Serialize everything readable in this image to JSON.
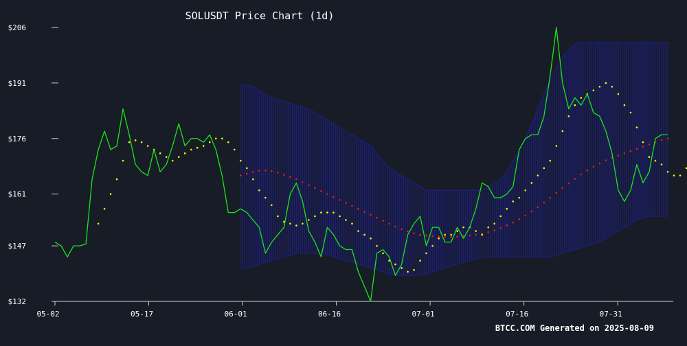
{
  "colors": {
    "background": "#181c26",
    "axis": "#cfcfcf",
    "text": "#ffffff",
    "price": "#19e619",
    "short_ma": "#ffff00",
    "long_ma": "#e0201a",
    "bollinger": "#1c1f8a"
  },
  "chart_data": {
    "type": "line",
    "title": "SOLUSDT Price Chart (1d)",
    "xlabel": "",
    "ylabel": "",
    "footer": "BTCC.COM Generated on 2025-08-09",
    "x_ticks": [
      "05-02",
      "05-17",
      "06-01",
      "06-16",
      "07-01",
      "07-16",
      "07-31"
    ],
    "y_ticks": [
      "$132",
      "$147",
      "$161",
      "$176",
      "$191",
      "$206"
    ],
    "y_tick_values": [
      132,
      147,
      161,
      176,
      191,
      206
    ],
    "ylim": [
      132,
      206
    ],
    "x_start": "2025-05-02",
    "x_end": "2025-08-08",
    "grid": false,
    "legend": "none",
    "series": [
      {
        "style": "line",
        "color": "#19e619",
        "values": [
          148,
          147,
          144,
          147,
          147,
          147.5,
          165,
          173,
          178,
          173,
          174,
          184,
          177,
          169,
          167,
          166,
          173,
          167,
          169,
          174,
          180,
          174,
          176,
          176,
          175,
          177,
          173,
          166,
          156,
          156,
          157,
          156,
          154,
          152,
          145,
          148,
          150,
          152,
          161,
          164,
          159,
          151,
          148,
          144,
          152,
          150,
          147,
          146,
          146,
          140,
          136,
          132,
          145,
          146,
          144,
          139,
          142,
          150,
          153,
          155,
          147,
          152,
          152,
          148,
          148,
          152,
          149,
          152,
          157,
          164,
          163,
          160,
          160,
          161,
          163,
          173,
          176,
          177,
          177,
          182,
          193,
          206,
          191,
          184,
          187,
          185,
          188,
          183,
          182,
          178,
          172,
          162,
          159,
          162,
          169,
          164,
          167,
          176,
          177,
          177
        ]
      },
      {
        "style": "dots",
        "color": "#ffff00",
        "start_index": 7,
        "values": [
          153,
          157,
          161,
          165,
          170,
          175,
          175.5,
          175,
          174,
          173,
          172,
          171,
          170,
          171,
          172,
          173,
          173.5,
          174,
          175,
          176,
          176,
          175,
          173,
          170,
          168,
          165,
          162,
          160,
          158,
          155,
          153.5,
          153,
          152.5,
          153,
          154,
          155,
          156,
          156,
          156,
          155,
          154,
          153,
          151,
          150,
          149,
          147,
          145,
          143,
          142,
          141,
          140,
          140.5,
          143,
          145,
          147,
          149,
          150,
          150,
          151,
          152,
          152,
          151,
          150,
          152,
          153,
          155,
          157,
          159,
          160,
          162,
          164,
          166,
          168,
          170,
          174,
          178,
          182,
          185,
          187,
          188,
          189,
          190,
          191,
          190,
          188,
          185,
          183,
          179,
          175,
          171,
          170,
          169,
          167,
          166,
          166,
          168,
          171
        ]
      },
      {
        "style": "dots",
        "color": "#e0201a",
        "start_index": 30,
        "values": [
          166,
          166.5,
          167,
          167.3,
          167.4,
          167.2,
          166.8,
          166.2,
          165.6,
          165,
          164.2,
          163.4,
          162.6,
          161.8,
          161,
          160.2,
          159.4,
          158.6,
          157.8,
          157,
          156.2,
          155.4,
          154.6,
          153.8,
          153,
          152.2,
          151.5,
          150.9,
          150.4,
          150,
          149.8,
          149.6,
          149.5,
          149.4,
          149.4,
          149.5,
          149.6,
          149.8,
          150,
          150.3,
          150.7,
          151.2,
          151.8,
          152.5,
          153.3,
          154.2,
          155.2,
          156.3,
          157.5,
          158.7,
          160,
          161.3,
          162.6,
          163.9,
          165.1,
          166.3,
          167.4,
          168.4,
          169.3,
          170.1,
          170.8,
          171.4,
          172,
          172.6,
          173.2,
          173.8,
          174.4,
          175,
          175.6,
          176
        ]
      }
    ],
    "bands": [
      {
        "color": "#1c1f8a",
        "start_index": 30,
        "upper": [
          190.5,
          190.5,
          190,
          189,
          188,
          187,
          186.5,
          186,
          185.5,
          185,
          184.5,
          184,
          183,
          182,
          181,
          180,
          179,
          178,
          177,
          176,
          175,
          174,
          172,
          170,
          168,
          167,
          166,
          165,
          164,
          163,
          162,
          162,
          162,
          162,
          162,
          162,
          162,
          162,
          162,
          162,
          163,
          164,
          165,
          167,
          170,
          173,
          176,
          180,
          184,
          188,
          192,
          195,
          198,
          200,
          201.5,
          202,
          202,
          202,
          202,
          202,
          202,
          202,
          202,
          202,
          202,
          202,
          202,
          202,
          202,
          202
        ],
        "lower": [
          141,
          141,
          141.5,
          142,
          142.5,
          143,
          143.5,
          144,
          144.5,
          145,
          145,
          145,
          145,
          145,
          144.5,
          144,
          143.5,
          143,
          142.5,
          142,
          141.5,
          141,
          140.5,
          140,
          139.5,
          139,
          139,
          139,
          139,
          139,
          139.5,
          140,
          140.5,
          141,
          141.5,
          142,
          142.5,
          143,
          143.5,
          144,
          144,
          144,
          144,
          144,
          144,
          144,
          144,
          144,
          144,
          144,
          144,
          144.5,
          145,
          145.5,
          146,
          146.5,
          147,
          147.5,
          148,
          149,
          150,
          151,
          152,
          153,
          154,
          154.5,
          155,
          155,
          155,
          155
        ]
      }
    ]
  }
}
